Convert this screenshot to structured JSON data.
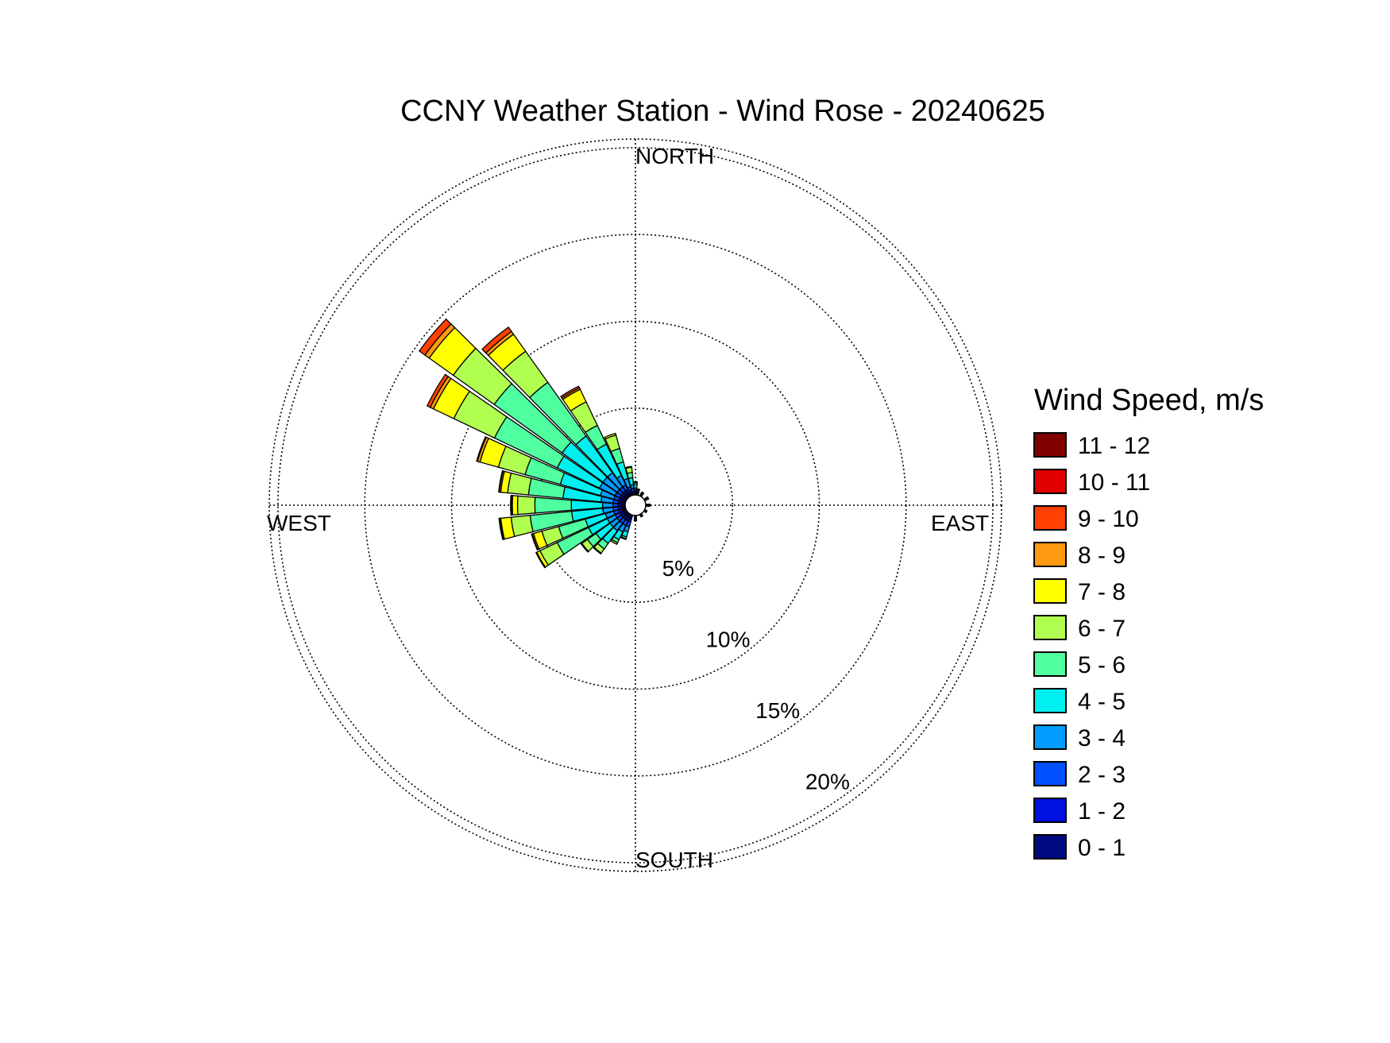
{
  "chart_data": {
    "type": "wind-rose",
    "title": "CCNY Weather Station - Wind Rose - 20240625",
    "directions": {
      "north": "NORTH",
      "south": "SOUTH",
      "east": "EAST",
      "west": "WEST"
    },
    "radial_ticks": [
      {
        "value": 5,
        "label": "5%"
      },
      {
        "value": 10,
        "label": "10%"
      },
      {
        "value": 15,
        "label": "15%"
      },
      {
        "value": 20,
        "label": "20%"
      }
    ],
    "radial_max": 20.5,
    "legend": {
      "title": "Wind Speed, m/s",
      "bins": [
        {
          "label": "11 - 12",
          "color": "#800000"
        },
        {
          "label": "10 - 11",
          "color": "#e00000"
        },
        {
          "label": "9 - 10",
          "color": "#ff4000"
        },
        {
          "label": "8 - 9",
          "color": "#ff9a10"
        },
        {
          "label": "7 - 8",
          "color": "#ffff00"
        },
        {
          "label": "6 - 7",
          "color": "#b0ff50"
        },
        {
          "label": "5 - 6",
          "color": "#50ffa0"
        },
        {
          "label": "4 - 5",
          "color": "#00f0f0"
        },
        {
          "label": "3 - 4",
          "color": "#009cff"
        },
        {
          "label": "2 - 3",
          "color": "#0050ff"
        },
        {
          "label": "1 - 2",
          "color": "#0010e0"
        },
        {
          "label": "0 - 1",
          "color": "#000a80"
        }
      ]
    },
    "sector_width_deg": 9,
    "stack_order": [
      "0 - 1",
      "1 - 2",
      "2 - 3",
      "3 - 4",
      "4 - 5",
      "5 - 6",
      "6 - 7",
      "7 - 8",
      "8 - 9",
      "9 - 10",
      "10 - 11",
      "11 - 12"
    ],
    "sectors": [
      {
        "dir": 250,
        "values": [
          0.2,
          0.2,
          0.3,
          0.5,
          1.2,
          1.6,
          1.0,
          0.5,
          0.08,
          0.04,
          0,
          0
        ]
      },
      {
        "dir": 260,
        "values": [
          0.2,
          0.2,
          0.3,
          0.6,
          1.8,
          2.4,
          1.1,
          0.6,
          0.06,
          0.04,
          0,
          0
        ]
      },
      {
        "dir": 270,
        "values": [
          0.2,
          0.2,
          0.3,
          0.6,
          1.8,
          2.1,
          1.0,
          0.3,
          0.06,
          0.04,
          0,
          0
        ]
      },
      {
        "dir": 280,
        "values": [
          0.2,
          0.2,
          0.3,
          0.7,
          2.2,
          2.0,
          1.2,
          0.4,
          0.08,
          0.04,
          0,
          0
        ]
      },
      {
        "dir": 290,
        "values": [
          0.2,
          0.2,
          0.3,
          0.8,
          2.4,
          2.1,
          1.6,
          1.1,
          0.15,
          0.05,
          0,
          0
        ]
      },
      {
        "dir": 300,
        "values": [
          0.2,
          0.2,
          0.3,
          1.0,
          2.7,
          4.0,
          2.6,
          1.3,
          0.2,
          0.2,
          0,
          0
        ]
      },
      {
        "dir": 310,
        "values": [
          0.2,
          0.2,
          0.3,
          1.0,
          2.9,
          4.8,
          2.9,
          1.7,
          0.3,
          0.4,
          0,
          0
        ]
      },
      {
        "dir": 320,
        "values": [
          0.2,
          0.2,
          0.3,
          1.0,
          2.6,
          3.8,
          2.2,
          1.2,
          0.2,
          0.3,
          0,
          0
        ]
      },
      {
        "dir": 330,
        "values": [
          0.2,
          0.2,
          0.3,
          0.6,
          2.0,
          1.2,
          1.5,
          0.8,
          0.1,
          0.1,
          0,
          0
        ]
      },
      {
        "dir": 340,
        "values": [
          0.1,
          0.2,
          0.2,
          0.5,
          1.0,
          0.8,
          0.8,
          0.1,
          0,
          0,
          0,
          0
        ]
      },
      {
        "dir": 350,
        "values": [
          0.1,
          0.1,
          0.2,
          0.2,
          0.4,
          0.3,
          0.3,
          0.05,
          0,
          0,
          0,
          0
        ]
      },
      {
        "dir": 0,
        "values": [
          0.1,
          0.1,
          0.1,
          0.1,
          0.2,
          0.1,
          0.05,
          0,
          0,
          0,
          0,
          0
        ]
      },
      {
        "dir": 10,
        "values": [
          0.1,
          0.1,
          0.1,
          0.05,
          0,
          0,
          0,
          0,
          0,
          0,
          0,
          0
        ]
      },
      {
        "dir": 30,
        "values": [
          0.1,
          0.1,
          0.05,
          0,
          0,
          0,
          0,
          0,
          0,
          0,
          0,
          0
        ]
      },
      {
        "dir": 60,
        "values": [
          0.1,
          0.1,
          0.05,
          0,
          0,
          0,
          0,
          0,
          0,
          0,
          0,
          0
        ]
      },
      {
        "dir": 90,
        "values": [
          0.1,
          0.1,
          0.05,
          0,
          0,
          0,
          0,
          0,
          0,
          0,
          0,
          0
        ]
      },
      {
        "dir": 120,
        "values": [
          0.1,
          0.05,
          0,
          0,
          0,
          0,
          0,
          0,
          0,
          0,
          0,
          0
        ]
      },
      {
        "dir": 150,
        "values": [
          0.1,
          0.05,
          0,
          0,
          0,
          0,
          0,
          0,
          0,
          0,
          0,
          0
        ]
      },
      {
        "dir": 180,
        "values": [
          0.15,
          0.1,
          0.05,
          0,
          0,
          0,
          0,
          0,
          0,
          0,
          0,
          0
        ]
      },
      {
        "dir": 200,
        "values": [
          0.2,
          0.2,
          0.3,
          0.3,
          0.3,
          0.1,
          0.05,
          0,
          0,
          0,
          0,
          0
        ]
      },
      {
        "dir": 210,
        "values": [
          0.2,
          0.2,
          0.3,
          0.4,
          0.5,
          0.2,
          0.1,
          0,
          0,
          0,
          0,
          0
        ]
      },
      {
        "dir": 220,
        "values": [
          0.2,
          0.2,
          0.3,
          0.5,
          0.9,
          0.4,
          0.3,
          0.05,
          0,
          0,
          0,
          0
        ]
      },
      {
        "dir": 230,
        "values": [
          0.2,
          0.2,
          0.3,
          0.5,
          1.0,
          0.6,
          0.4,
          0.05,
          0,
          0,
          0,
          0
        ]
      },
      {
        "dir": 240,
        "values": [
          0.2,
          0.2,
          0.3,
          0.5,
          1.2,
          2.0,
          1.1,
          0.2,
          0.05,
          0,
          0,
          0
        ]
      }
    ]
  }
}
